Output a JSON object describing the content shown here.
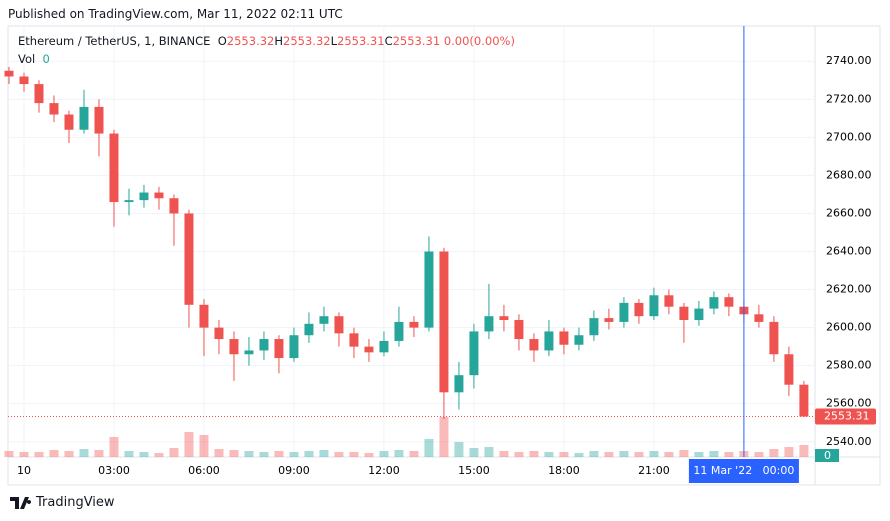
{
  "header": {
    "published": "Published on TradingView.com, Mar 11, 2022 02:11 UTC"
  },
  "footer": {
    "brand": "TradingView"
  },
  "chart_data": {
    "type": "candlestick",
    "symbol": "Ethereum / TetherUS, 1, BINANCE",
    "legend_ohlc": [
      {
        "label": "O",
        "value": 2553.32
      },
      {
        "label": "H",
        "value": 2553.32
      },
      {
        "label": "L",
        "value": 2553.31
      },
      {
        "label": "C",
        "value": 2553.31
      }
    ],
    "change": {
      "value": 0,
      "label": "0.00"
    },
    "change_pct": "(0.00%)",
    "volume_label": "Vol",
    "volume_value": 0,
    "up_color": "#26a69a",
    "down_color": "#ef5350",
    "crosshair_color": "#2962ff",
    "last_price": 2553.31,
    "xlim": [
      -0.533,
      26.37
    ],
    "ylim": [
      2532,
      2758
    ],
    "xticks": [
      {
        "value": 0,
        "label": "10"
      },
      {
        "value": 3,
        "label": "03:00"
      },
      {
        "value": 6,
        "label": "06:00"
      },
      {
        "value": 9,
        "label": "09:00"
      },
      {
        "value": 12,
        "label": "12:00"
      },
      {
        "value": 15,
        "label": "15:00"
      },
      {
        "value": 18,
        "label": "18:00"
      },
      {
        "value": 21,
        "label": "21:00"
      }
    ],
    "crosshair": {
      "value": 24,
      "label": "11 Mar '22   00:00"
    },
    "yticks": [
      {
        "value": 2540,
        "label": "2540.00"
      },
      {
        "value": 2560,
        "label": "2560.00"
      },
      {
        "value": 2580,
        "label": "2580.00"
      },
      {
        "value": 2600,
        "label": "2600.00"
      },
      {
        "value": 2620,
        "label": "2620.00"
      },
      {
        "value": 2640,
        "label": "2640.00"
      },
      {
        "value": 2660,
        "label": "2660.00"
      },
      {
        "value": 2680,
        "label": "2680.00"
      },
      {
        "value": 2700,
        "label": "2700.00"
      },
      {
        "value": 2720,
        "label": "2720.00"
      },
      {
        "value": 2740,
        "label": "2740.00"
      }
    ],
    "grid": true,
    "x": [
      -0.5,
      0,
      0.5,
      1,
      1.5,
      2,
      2.5,
      3,
      3.5,
      4,
      4.5,
      5,
      5.5,
      6,
      6.5,
      7,
      7.5,
      8,
      8.5,
      9,
      9.5,
      10,
      10.5,
      11,
      11.5,
      12,
      12.5,
      13,
      13.5,
      14,
      14.5,
      15,
      15.5,
      16,
      16.5,
      17,
      17.5,
      18,
      18.5,
      19,
      19.5,
      20,
      20.5,
      21,
      21.5,
      22,
      22.5,
      23,
      23.5,
      24,
      24.5,
      25,
      25.5,
      26
    ],
    "open": [
      2735,
      2732,
      2728,
      2718,
      2712,
      2704,
      2716,
      2702,
      2666,
      2667,
      2671,
      2668,
      2660,
      2612,
      2600,
      2594,
      2586,
      2588,
      2594,
      2584,
      2596,
      2602,
      2606,
      2597,
      2590,
      2587,
      2593,
      2603,
      2600,
      2640,
      2566,
      2575,
      2598,
      2606,
      2604,
      2594,
      2588,
      2598,
      2591,
      2596,
      2605,
      2603,
      2613,
      2606,
      2617,
      2611,
      2604,
      2610,
      2616,
      2611,
      2607,
      2603,
      2586,
      2570
    ],
    "high": [
      2737,
      2734,
      2730,
      2722,
      2714,
      2725,
      2720,
      2704,
      2673,
      2675,
      2674,
      2670,
      2662,
      2615,
      2604,
      2598,
      2595,
      2598,
      2596,
      2600,
      2608,
      2611,
      2608,
      2600,
      2594,
      2598,
      2611,
      2606,
      2648,
      2642,
      2582,
      2602,
      2623,
      2612,
      2607,
      2597,
      2604,
      2600,
      2600,
      2609,
      2610,
      2616,
      2615,
      2621,
      2620,
      2613,
      2614,
      2619,
      2618,
      2614,
      2612,
      2606,
      2590,
      2572
    ],
    "low": [
      2728,
      2724,
      2713,
      2708,
      2697,
      2702,
      2690,
      2653,
      2659,
      2663,
      2662,
      2643,
      2600,
      2585,
      2586,
      2572,
      2580,
      2583,
      2576,
      2582,
      2592,
      2598,
      2590,
      2584,
      2582,
      2585,
      2590,
      2595,
      2598,
      2552,
      2557,
      2568,
      2594,
      2598,
      2588,
      2582,
      2585,
      2586,
      2588,
      2593,
      2599,
      2600,
      2602,
      2604,
      2607,
      2592,
      2601,
      2607,
      2606,
      2603,
      2600,
      2582,
      2564,
      2553
    ],
    "close": [
      2732,
      2728,
      2718,
      2712,
      2704,
      2716,
      2702,
      2666,
      2667,
      2671,
      2668,
      2660,
      2612,
      2600,
      2594,
      2586,
      2588,
      2594,
      2584,
      2596,
      2602,
      2606,
      2597,
      2590,
      2587,
      2593,
      2603,
      2600,
      2640,
      2566,
      2575,
      2598,
      2606,
      2604,
      2594,
      2588,
      2598,
      2591,
      2596,
      2605,
      2603,
      2613,
      2606,
      2617,
      2611,
      2604,
      2610,
      2616,
      2611,
      2607,
      2603,
      2586,
      2570,
      2553.31
    ],
    "volume": [
      6,
      5,
      5,
      7,
      6,
      8,
      7,
      20,
      6,
      5,
      4,
      9,
      25,
      22,
      8,
      7,
      6,
      5,
      6,
      5,
      6,
      7,
      5,
      5,
      4,
      6,
      7,
      6,
      18,
      40,
      15,
      9,
      10,
      6,
      5,
      6,
      5,
      5,
      4,
      6,
      5,
      6,
      5,
      6,
      5,
      7,
      5,
      6,
      5,
      6,
      5,
      8,
      10,
      12
    ]
  }
}
